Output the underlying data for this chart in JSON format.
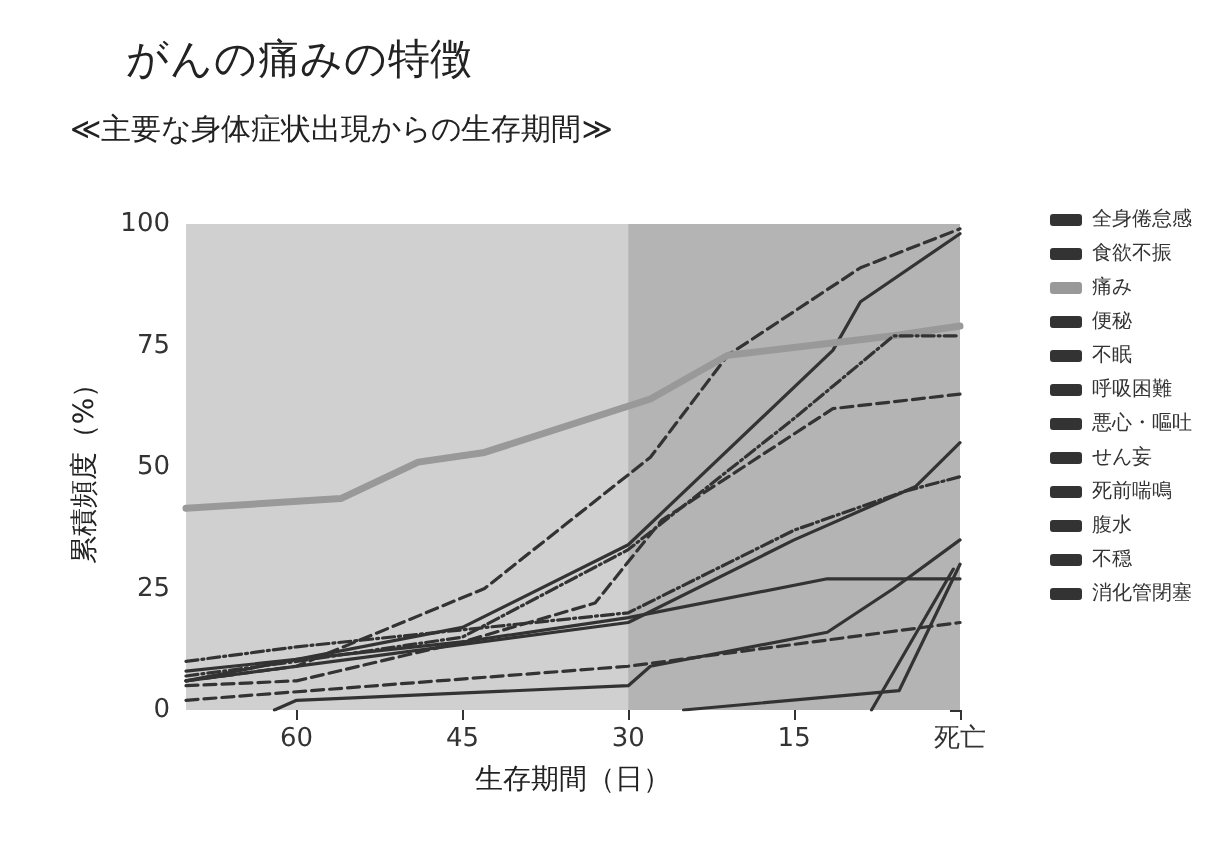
{
  "chart_data": {
    "type": "line",
    "title": "がんの痛みの特徴",
    "subtitle": "≪主要な身体症状出現からの生存期間≫",
    "xlabel": "生存期間（日）",
    "ylabel": "累積頻度（%）",
    "xlim": [
      70,
      0
    ],
    "xticks": [
      60,
      45,
      30,
      15,
      {
        "value": 0,
        "label": "死亡"
      }
    ],
    "ylim": [
      0,
      100
    ],
    "yticks": [
      0,
      25,
      50,
      75,
      100
    ],
    "grid": false,
    "legend": "right",
    "marker": "none",
    "bands": [
      {
        "axis": "x",
        "from": 30,
        "to": 0,
        "color": "#b4b4b4"
      }
    ],
    "series": [
      {
        "name": "全身倦怠感",
        "color": "#333333",
        "line_style": "dashed",
        "x": [
          70,
          60,
          43,
          28,
          21,
          9,
          0
        ],
        "values": [
          6,
          9,
          25,
          52,
          73,
          91,
          99
        ]
      },
      {
        "name": "食欲不振",
        "color": "#333333",
        "line_style": "solid",
        "x": [
          70,
          45,
          30,
          11.5,
          9,
          0
        ],
        "values": [
          6,
          17,
          34,
          74,
          84,
          98
        ]
      },
      {
        "name": "痛み",
        "color": "#999999",
        "line_style": "solid",
        "x": [
          70,
          56,
          49,
          43,
          28,
          21,
          6,
          0
        ],
        "values": [
          41.5,
          43.5,
          51,
          53,
          64,
          73,
          77,
          79
        ]
      },
      {
        "name": "便秘",
        "color": "#333333",
        "line_style": "dotted",
        "x": [
          70,
          60,
          45,
          30,
          15,
          6,
          0
        ],
        "values": [
          7,
          10,
          15,
          33,
          60,
          77,
          77
        ]
      },
      {
        "name": "不眠",
        "color": "#333333",
        "line_style": "dashed",
        "x": [
          70,
          60,
          45,
          33,
          27,
          11.5,
          0
        ],
        "values": [
          5,
          6,
          14,
          22,
          39,
          62,
          65
        ]
      },
      {
        "name": "呼吸困難",
        "color": "#333333",
        "line_style": "solid",
        "x": [
          70,
          30,
          15,
          4,
          0
        ],
        "values": [
          6,
          18,
          35,
          46,
          55
        ]
      },
      {
        "name": "悪心・嘔吐",
        "color": "#333333",
        "line_style": "dotted",
        "x": [
          70,
          60,
          30,
          15,
          5,
          0
        ],
        "values": [
          10,
          13,
          20,
          37,
          45,
          48
        ]
      },
      {
        "name": "せん妄",
        "color": "#333333",
        "line_style": "solid",
        "x": [
          70,
          45,
          30,
          12,
          0
        ],
        "values": [
          8,
          14,
          19,
          27,
          27
        ]
      },
      {
        "name": "死前喘鳴",
        "color": "#333333",
        "line_style": "solid",
        "x": [
          62,
          60,
          30,
          28,
          12,
          6,
          0
        ],
        "values": [
          0,
          2,
          5,
          9,
          16,
          25,
          35
        ]
      },
      {
        "name": "腹水",
        "color": "#333333",
        "line_style": "dashed",
        "x": [
          70,
          30,
          0
        ],
        "values": [
          2,
          9,
          18
        ]
      },
      {
        "name": "不穏",
        "color": "#333333",
        "line_style": "solid",
        "x": [
          25,
          5.5,
          0
        ],
        "values": [
          0,
          4,
          30
        ]
      },
      {
        "name": "消化管閉塞",
        "color": "#333333",
        "line_style": "solid",
        "x": [
          8,
          0.6
        ],
        "values": [
          0,
          29
        ]
      }
    ]
  }
}
